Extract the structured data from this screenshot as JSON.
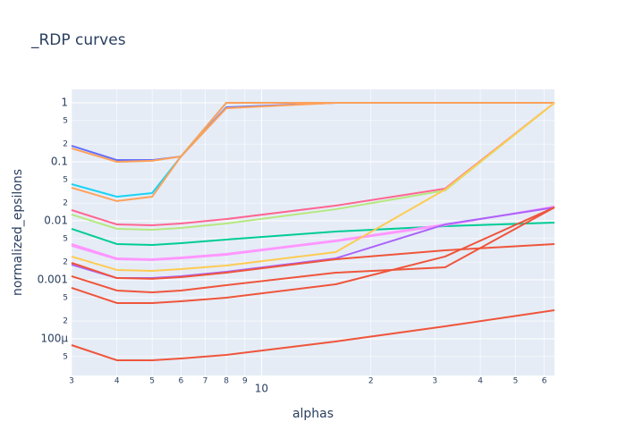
{
  "chart_data": {
    "type": "line",
    "title": "_RDP curves",
    "x_label": "alphas",
    "y_label": "normalized_epsilons",
    "x": [
      3,
      4,
      5,
      6,
      8,
      16,
      32,
      64
    ],
    "xlim": [
      3,
      64
    ],
    "ylim": [
      2.39e-05,
      1.688
    ],
    "x_log": true,
    "y_log": true,
    "grid": true,
    "xticks": [
      3,
      4,
      5,
      6,
      7,
      8,
      9,
      10,
      {
        "value": 20,
        "label": "2"
      },
      {
        "value": 30,
        "label": "3"
      },
      {
        "value": 40,
        "label": "4"
      },
      {
        "value": 50,
        "label": "5"
      },
      {
        "value": 60,
        "label": "6"
      }
    ],
    "yticks": [
      1,
      {
        "value": 0.5,
        "label": "5"
      },
      {
        "value": 0.2,
        "label": "2"
      },
      0.1,
      {
        "value": 0.05,
        "label": "5"
      },
      {
        "value": 0.02,
        "label": "2"
      },
      0.01,
      {
        "value": 0.005,
        "label": "5"
      },
      {
        "value": 0.002,
        "label": "2"
      },
      0.001,
      {
        "value": 0.0005,
        "label": "5"
      },
      {
        "value": 0.0002,
        "label": "2"
      },
      {
        "value": 0.0001,
        "label": "100µ"
      },
      {
        "value": 5e-05,
        "label": "5"
      }
    ],
    "series": [
      {
        "color": "#636efa",
        "values": [
          0.187,
          0.107,
          0.107,
          0.123,
          0.84,
          1,
          1,
          1
        ]
      },
      {
        "color": "#FFA15A",
        "values": [
          0.169,
          0.1,
          0.104,
          0.123,
          0.81,
          1,
          1,
          1
        ]
      },
      {
        "color": "#19d3f3",
        "values": [
          0.0418,
          0.0256,
          0.0295,
          0.123,
          1,
          1,
          1,
          1
        ]
      },
      {
        "color": "#FFA15A",
        "values": [
          0.0364,
          0.0216,
          0.0256,
          0.123,
          1,
          1,
          1,
          1
        ]
      },
      {
        "color": "#FF6692",
        "values": [
          0.0152,
          0.00869,
          0.0084,
          0.00901,
          0.0107,
          0.0181,
          0.0351,
          1
        ]
      },
      {
        "color": "#B6E880",
        "values": [
          0.0128,
          0.00731,
          0.00705,
          0.00757,
          0.00901,
          0.0157,
          0.0327,
          1
        ]
      },
      {
        "color": "#00cc96",
        "values": [
          0.00731,
          0.00404,
          0.0039,
          0.00418,
          0.00481,
          0.00658,
          0.00811,
          0.00933
        ]
      },
      {
        "color": "#FF97FF",
        "values": [
          0.00404,
          0.00231,
          0.00223,
          0.00239,
          0.00275,
          0.00464,
          0.00869,
          0.0169
        ]
      },
      {
        "color": "#FF97FF",
        "values": [
          0.00377,
          0.00223,
          0.00216,
          0.00231,
          0.00266,
          0.00449,
          0.0084,
          0.0175
        ]
      },
      {
        "color": "#FECB52",
        "values": [
          0.00248,
          0.00147,
          0.00142,
          0.00152,
          0.00175,
          0.00295,
          0.0339,
          1
        ]
      },
      {
        "color": "#ab63fa",
        "values": [
          0.00181,
          0.00107,
          0.00107,
          0.00115,
          0.00137,
          0.00231,
          0.00869,
          0.0169
        ]
      },
      {
        "color": "#EF553B",
        "values": [
          0.00194,
          0.00107,
          0.00104,
          0.00111,
          0.00132,
          0.00223,
          0.00316,
          0.00404
        ]
      },
      {
        "color": "#EF553B",
        "values": [
          0.00115,
          0.000658,
          0.000614,
          0.000658,
          0.000811,
          0.00132,
          0.00163,
          0.0169
        ]
      },
      {
        "color": "#EF553B",
        "values": [
          0.000731,
          0.000404,
          0.000404,
          0.000433,
          0.000498,
          0.000839,
          0.00248,
          0.0169
        ]
      },
      {
        "color": "#EF553B",
        "values": [
          7.83e-05,
          4.33e-05,
          4.33e-05,
          4.64e-05,
          5.33e-05,
          9.01e-05,
          0.000163,
          0.000305
        ]
      }
    ]
  }
}
